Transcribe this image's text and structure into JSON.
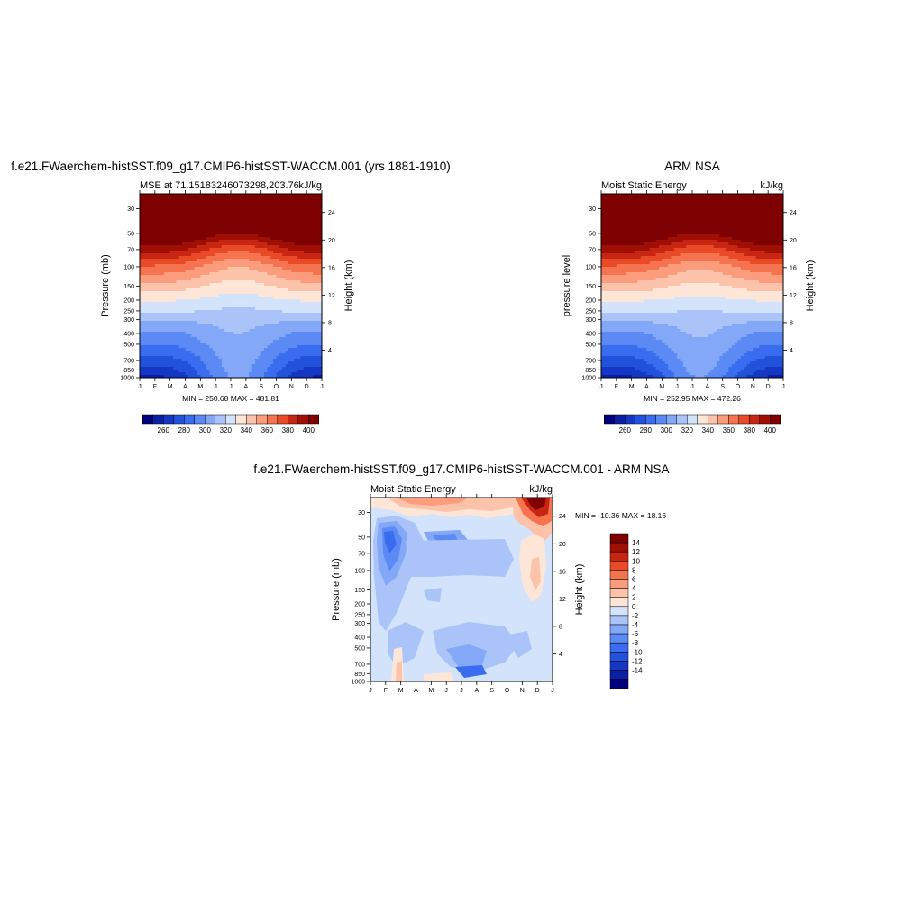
{
  "panels": [
    {
      "id": "model",
      "title": "f.e21.FWaerchem-histSST.f09_g17.CMIP6-histSST-WACCM.001 (yrs 1881-1910)",
      "left_label": "MSE at 71.15183246073298,203.76",
      "right_label": "kJ/kg",
      "ylabel": "Pressure (mb)",
      "y2label": "Height (km)",
      "minmax": "MIN = 250.68 MAX = 481.81"
    },
    {
      "id": "obs",
      "title": "ARM NSA",
      "left_label": "Moist Static Energy",
      "right_label": "kJ/kg",
      "ylabel": "pressure level",
      "y2label": "Height (km)",
      "minmax": "MIN = 252.95 MAX = 472.26"
    },
    {
      "id": "diff",
      "title": "f.e21.FWaerchem-histSST.f09_g17.CMIP6-histSST-WACCM.001 - ARM NSA",
      "left_label": "Moist Static Energy",
      "right_label": "kJ/kg",
      "ylabel": "Pressure (mb)",
      "y2label": "Height (km)",
      "minmax": "MIN = -10.36 MAX =  18.16"
    }
  ],
  "chart_data": [
    {
      "type": "heatmap",
      "panel": "model",
      "x": [
        "J",
        "F",
        "M",
        "A",
        "M",
        "J",
        "J",
        "A",
        "S",
        "O",
        "N",
        "D",
        "J"
      ],
      "pressure_ticks": [
        30,
        50,
        70,
        100,
        150,
        200,
        250,
        300,
        400,
        500,
        700,
        850,
        1000
      ],
      "height_ticks_km": [
        4,
        8,
        12,
        16,
        20,
        24
      ],
      "ylim": [
        1000,
        22
      ],
      "z_min": 250.68,
      "z_max": 481.81,
      "colorbar_ticks": [
        260,
        280,
        300,
        320,
        340,
        360,
        380,
        400
      ],
      "levels": [
        250,
        260,
        270,
        280,
        290,
        300,
        310,
        320,
        330,
        340,
        350,
        360,
        370,
        380,
        390,
        400
      ],
      "approx_field": {
        "pressure": [
          1000,
          850,
          700,
          500,
          400,
          300,
          250,
          200,
          150,
          100,
          70,
          50,
          30
        ],
        "winter": [
          258,
          266,
          275,
          290,
          297,
          311,
          322,
          331,
          346,
          368,
          395,
          420,
          460
        ],
        "summer": [
          302,
          303,
          304,
          307,
          310,
          313,
          318,
          325,
          335,
          350,
          372,
          400,
          440
        ]
      }
    },
    {
      "type": "heatmap",
      "panel": "obs",
      "x": [
        "J",
        "F",
        "M",
        "A",
        "M",
        "J",
        "J",
        "A",
        "S",
        "O",
        "N",
        "D",
        "J"
      ],
      "pressure_ticks": [
        30,
        50,
        70,
        100,
        150,
        200,
        250,
        300,
        400,
        500,
        700,
        850,
        1000
      ],
      "height_ticks_km": [
        4,
        8,
        12,
        16,
        20,
        24
      ],
      "ylim": [
        1000,
        22
      ],
      "z_min": 252.95,
      "z_max": 472.26,
      "colorbar_ticks": [
        260,
        280,
        300,
        320,
        340,
        360,
        380,
        400
      ],
      "levels": [
        250,
        260,
        270,
        280,
        290,
        300,
        310,
        320,
        330,
        340,
        350,
        360,
        370,
        380,
        390,
        400
      ],
      "approx_field": {
        "pressure": [
          1000,
          850,
          700,
          500,
          400,
          300,
          250,
          200,
          150,
          100,
          70,
          50,
          30
        ],
        "winter": [
          256,
          266,
          275,
          290,
          297,
          311,
          322,
          331,
          346,
          368,
          395,
          420,
          455
        ],
        "summer": [
          300,
          303,
          305,
          308,
          311,
          314,
          320,
          327,
          337,
          352,
          373,
          400,
          438
        ]
      }
    },
    {
      "type": "heatmap",
      "panel": "diff",
      "x": [
        "J",
        "F",
        "M",
        "A",
        "M",
        "J",
        "J",
        "A",
        "S",
        "O",
        "N",
        "D",
        "J"
      ],
      "pressure_ticks": [
        30,
        50,
        70,
        100,
        150,
        200,
        250,
        300,
        400,
        500,
        700,
        850,
        1000
      ],
      "height_ticks_km": [
        4,
        8,
        12,
        16,
        20,
        24
      ],
      "ylim": [
        1000,
        22
      ],
      "z_min": -10.36,
      "z_max": 18.16,
      "colorbar_ticks": [
        -14,
        -12,
        -10,
        -8,
        -6,
        -4,
        -2,
        0,
        2,
        4,
        6,
        8,
        10,
        12,
        14
      ],
      "levels": [
        -16,
        -14,
        -12,
        -10,
        -8,
        -6,
        -4,
        -2,
        0,
        2,
        4,
        6,
        8,
        10,
        12,
        14,
        16
      ]
    }
  ],
  "colors": {
    "palette": [
      "#00007f",
      "#0a1ea6",
      "#1537c4",
      "#2252dc",
      "#3a6cf0",
      "#5c8af5",
      "#84a8f8",
      "#aac4fa",
      "#d3e3fc",
      "#fde6d8",
      "#fcc3aa",
      "#fb9c7c",
      "#f5734e",
      "#e94a27",
      "#c82612",
      "#a00f04",
      "#7f0000"
    ]
  }
}
